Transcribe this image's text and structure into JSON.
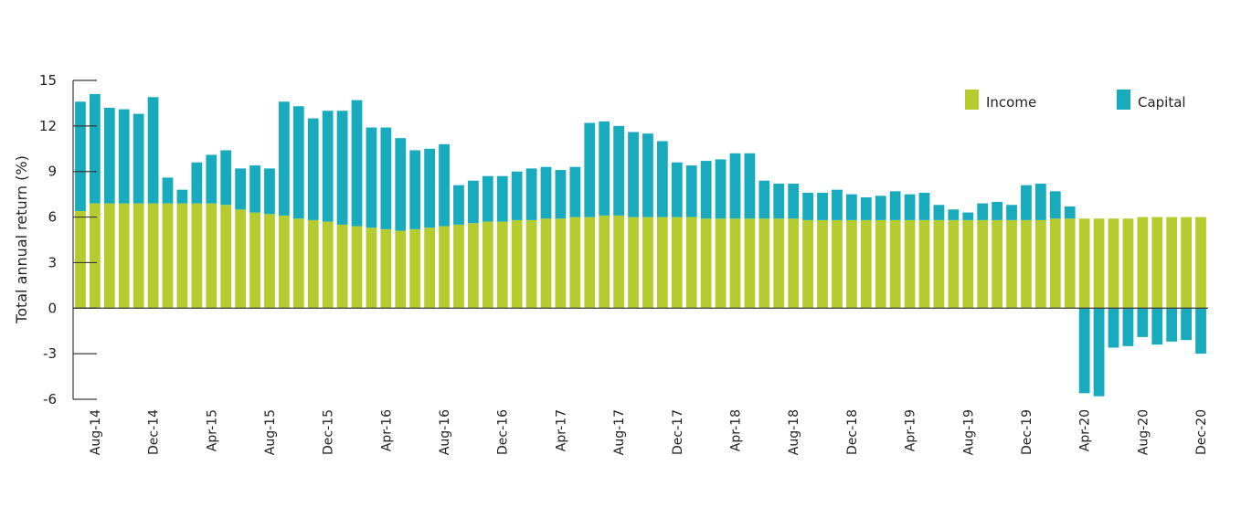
{
  "chart_data": {
    "type": "bar",
    "stacked": true,
    "ylabel": "Total annual return (%)",
    "xlabel": "",
    "ylim": [
      -6,
      15
    ],
    "yticks": [
      15,
      12,
      9,
      6,
      3,
      0,
      -3,
      -6
    ],
    "legend_position": "top-right",
    "grid": false,
    "categories": [
      "Jul-14",
      "Aug-14",
      "Sep-14",
      "Oct-14",
      "Nov-14",
      "Dec-14",
      "Jan-15",
      "Feb-15",
      "Mar-15",
      "Apr-15",
      "May-15",
      "Jun-15",
      "Jul-15",
      "Aug-15",
      "Sep-15",
      "Oct-15",
      "Nov-15",
      "Dec-15",
      "Jan-16",
      "Feb-16",
      "Mar-16",
      "Apr-16",
      "May-16",
      "Jun-16",
      "Jul-16",
      "Aug-16",
      "Sep-16",
      "Oct-16",
      "Nov-16",
      "Dec-16",
      "Jan-17",
      "Feb-17",
      "Mar-17",
      "Apr-17",
      "May-17",
      "Jun-17",
      "Jul-17",
      "Aug-17",
      "Sep-17",
      "Oct-17",
      "Nov-17",
      "Dec-17",
      "Jan-18",
      "Feb-18",
      "Mar-18",
      "Apr-18",
      "May-18",
      "Jun-18",
      "Jul-18",
      "Aug-18",
      "Sep-18",
      "Oct-18",
      "Nov-18",
      "Dec-18",
      "Jan-19",
      "Feb-19",
      "Mar-19",
      "Apr-19",
      "May-19",
      "Jun-19",
      "Jul-19",
      "Aug-19",
      "Sep-19",
      "Oct-19",
      "Nov-19",
      "Dec-19",
      "Jan-20",
      "Feb-20",
      "Mar-20",
      "Apr-20",
      "May-20",
      "Jun-20",
      "Jul-20",
      "Aug-20",
      "Sep-20",
      "Oct-20",
      "Nov-20",
      "Dec-20"
    ],
    "tick_labels": [
      "Aug-14",
      "Dec-14",
      "Apr-15",
      "Aug-15",
      "Dec-15",
      "Apr-16",
      "Aug-16",
      "Dec-16",
      "Apr-17",
      "Aug-17",
      "Dec-17",
      "Apr-18",
      "Aug-18",
      "Dec-18",
      "Apr-19",
      "Aug-19",
      "Dec-19",
      "Apr-20",
      "Aug-20",
      "Dec-20"
    ],
    "series": [
      {
        "name": "Income",
        "color": "#b5cc2e",
        "values": [
          6.4,
          6.9,
          6.9,
          6.9,
          6.9,
          6.9,
          6.9,
          6.9,
          6.9,
          6.9,
          6.8,
          6.5,
          6.3,
          6.2,
          6.1,
          5.9,
          5.8,
          5.7,
          5.5,
          5.4,
          5.3,
          5.2,
          5.1,
          5.2,
          5.3,
          5.4,
          5.5,
          5.6,
          5.7,
          5.7,
          5.8,
          5.8,
          5.9,
          5.9,
          6.0,
          6.0,
          6.1,
          6.1,
          6.0,
          6.0,
          6.0,
          6.0,
          6.0,
          5.9,
          5.9,
          5.9,
          5.9,
          5.9,
          5.9,
          5.9,
          5.8,
          5.8,
          5.8,
          5.8,
          5.8,
          5.8,
          5.8,
          5.8,
          5.8,
          5.8,
          5.8,
          5.8,
          5.8,
          5.8,
          5.8,
          5.8,
          5.8,
          5.9,
          5.9,
          5.9,
          5.9,
          5.9,
          5.9,
          6.0,
          6.0,
          6.0,
          6.0,
          6.0
        ]
      },
      {
        "name": "Capital",
        "color": "#18abbd",
        "values": [
          7.2,
          7.2,
          6.3,
          6.2,
          5.9,
          7.0,
          1.7,
          0.9,
          2.7,
          3.2,
          3.6,
          2.7,
          3.1,
          3.0,
          7.5,
          7.4,
          6.7,
          7.3,
          7.5,
          8.3,
          6.6,
          6.7,
          6.1,
          5.2,
          5.2,
          5.4,
          2.6,
          2.8,
          3.0,
          3.0,
          3.2,
          3.4,
          3.4,
          3.2,
          3.3,
          6.2,
          6.2,
          5.9,
          5.6,
          5.5,
          5.0,
          3.6,
          3.4,
          3.8,
          3.9,
          4.3,
          4.3,
          2.5,
          2.3,
          2.3,
          1.8,
          1.8,
          2.0,
          1.7,
          1.5,
          1.6,
          1.9,
          1.7,
          1.8,
          1.0,
          0.7,
          0.5,
          1.1,
          1.2,
          1.0,
          2.3,
          2.4,
          1.8,
          0.8,
          -5.6,
          -5.8,
          -2.6,
          -2.5,
          -1.9,
          -2.4,
          -2.2,
          -2.1,
          -3.0
        ]
      }
    ]
  }
}
